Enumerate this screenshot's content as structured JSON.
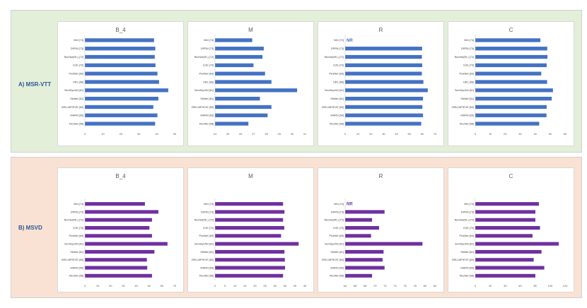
{
  "sections": [
    {
      "label": "A) MSR-VTT",
      "color": "#4472c4",
      "charts": [
        {
          "type": "bar",
          "orientation": "horizontal",
          "title": "B_4",
          "categories": [
            "Wei [74]",
            "DPRN [73]",
            "RecNet(RL) [72]",
            "E2E [70]",
            "PickNet [69]",
            "HRL [66]",
            "SemSynAN [61]",
            "SibNet [61]",
            "GRU-MP/EVE [60]",
            "MARN [59]",
            "RecNet [58]"
          ],
          "values": [
            38.5,
            39.2,
            38.9,
            39.3,
            40.4,
            41.3,
            46.4,
            40.9,
            38.1,
            40.4,
            39.1
          ],
          "xticks": [
            0,
            10,
            20,
            30,
            40,
            50
          ],
          "xlim": [
            0,
            50
          ]
        },
        {
          "type": "bar",
          "orientation": "horizontal",
          "title": "M",
          "categories": [
            "Wei [74]",
            "DPRN [73]",
            "RecNet(RL) [72]",
            "E2E [70]",
            "PickNet [69]",
            "HRL [66]",
            "SemSynAN [61]",
            "SibNet [61]",
            "GRU-MP/EVE [60]",
            "MARN [59]",
            "RecNet [58]"
          ],
          "values": [
            26.9,
            27.8,
            27.7,
            27.0,
            27.9,
            28.4,
            30.4,
            27.5,
            28.4,
            28.1,
            26.6
          ],
          "xticks": [
            24,
            25,
            26,
            27,
            28,
            29,
            30,
            31
          ],
          "xlim": [
            24,
            31
          ]
        },
        {
          "type": "bar",
          "orientation": "horizontal",
          "title": "R",
          "annotation": "NR",
          "categories": [
            "Wei [74]",
            "DPRN [73]",
            "RecNet(RL) [72]",
            "E2E [70]",
            "PickNet [69]",
            "HRL [66]",
            "SemSynAN [61]",
            "SibNet [61]",
            "GRU-MP/EVE [60]",
            "MARN [59]",
            "RecNet [58]"
          ],
          "values": [
            null,
            60.0,
            59.8,
            60.1,
            59.8,
            61.0,
            64.4,
            60.7,
            60.2,
            60.7,
            59.3
          ],
          "xticks": [
            0,
            10,
            20,
            30,
            40,
            50,
            60,
            70
          ],
          "xlim": [
            0,
            70
          ]
        },
        {
          "type": "bar",
          "orientation": "horizontal",
          "title": "C",
          "categories": [
            "Wei [74]",
            "DPRN [73]",
            "RecNet(RL) [72]",
            "E2E [70]",
            "PickNet [69]",
            "HRL [66]",
            "SemSynAN [61]",
            "SibNet [61]",
            "GRU-MP/EVE [60]",
            "MARN [59]",
            "RecNet [58]"
          ],
          "values": [
            43.5,
            48.1,
            48.2,
            47.7,
            44.1,
            48.0,
            51.9,
            51.1,
            47.7,
            47.6,
            42.7
          ],
          "xticks": [
            0,
            10,
            20,
            30,
            40,
            50,
            60
          ],
          "xlim": [
            0,
            60
          ]
        }
      ]
    },
    {
      "label": "B) MSVD",
      "color": "#7030a0",
      "charts": [
        {
          "type": "bar",
          "orientation": "horizontal",
          "title": "B_4",
          "categories": [
            "Wei [74]",
            "DPRN [73]",
            "RecNet(RL) [72]",
            "E2E [70]",
            "PickNet [69]",
            "SemSynAN [61]",
            "SibNet [61]",
            "GRU-MP/EVE [60]",
            "MARN [59]",
            "RecNet [58]"
          ],
          "values": [
            46.8,
            57.3,
            52.3,
            50.3,
            52.3,
            64.4,
            54.2,
            48.3,
            48.6,
            52.3
          ],
          "xticks": [
            0,
            10,
            20,
            30,
            40,
            50,
            60,
            70
          ],
          "xlim": [
            0,
            70
          ]
        },
        {
          "type": "bar",
          "orientation": "horizontal",
          "title": "M",
          "categories": [
            "Wei [74]",
            "DPRN [73]",
            "RecNet(RL) [72]",
            "E2E [70]",
            "PickNet [69]",
            "SemSynAN [61]",
            "SibNet [61]",
            "GRU-MP/EVE [60]",
            "MARN [59]",
            "RecNet [58]"
          ],
          "values": [
            34.1,
            34.8,
            34.1,
            34.7,
            33.1,
            41.9,
            34.8,
            35.0,
            35.1,
            34.1
          ],
          "xticks": [
            0,
            5,
            10,
            15,
            20,
            25,
            30,
            35,
            40,
            45
          ],
          "xlim": [
            0,
            45
          ]
        },
        {
          "type": "bar",
          "orientation": "horizontal",
          "title": "R",
          "annotation": "NR",
          "categories": [
            "Wei [74]",
            "DPRN [73]",
            "RecNet(RL) [72]",
            "E2E [70]",
            "PickNet [69]",
            "SemSynAN [61]",
            "SibNet [61]",
            "GRU-MP/EVE [60]",
            "MARN [59]",
            "RecNet [58]"
          ],
          "values": [
            null,
            71.9,
            69.4,
            70.8,
            69.2,
            79.5,
            71.7,
            71.5,
            71.9,
            69.4
          ],
          "xticks": [
            64,
            66,
            68,
            70,
            72,
            74,
            76,
            78,
            80,
            82
          ],
          "xlim": [
            64,
            82
          ]
        },
        {
          "type": "bar",
          "orientation": "horizontal",
          "title": "C",
          "categories": [
            "Wei [74]",
            "DPRN [73]",
            "RecNet(RL) [72]",
            "E2E [70]",
            "PickNet [69]",
            "SemSynAN [61]",
            "SibNet [61]",
            "GRU-MP/EVE [60]",
            "MARN [59]",
            "RecNet [58]"
          ],
          "values": [
            85.0,
            80.3,
            80.3,
            86.5,
            76.5,
            111.5,
            88.5,
            78.1,
            92.2,
            80.3
          ],
          "xticks": [
            0,
            20,
            40,
            60,
            80,
            100,
            120
          ],
          "xlim": [
            0,
            120
          ]
        }
      ]
    }
  ]
}
